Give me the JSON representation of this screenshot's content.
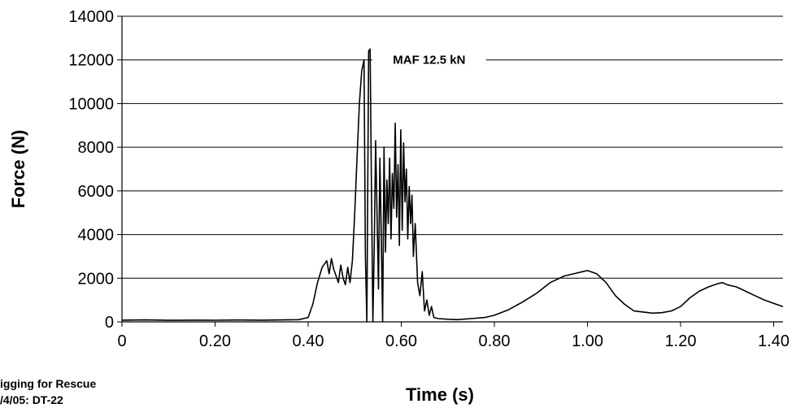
{
  "chart_data": {
    "type": "line",
    "xlabel": "Time (s)",
    "ylabel": "Force (N)",
    "xlim": [
      0,
      1.42
    ],
    "ylim": [
      0,
      14000
    ],
    "xticks": [
      0,
      0.2,
      0.4,
      0.6,
      0.8,
      1.0,
      1.2,
      1.4
    ],
    "xtick_labels": [
      "0",
      "0.20",
      "0.40",
      "0.60",
      "0.80",
      "1.00",
      "1.20",
      "1.40"
    ],
    "yticks": [
      0,
      2000,
      4000,
      6000,
      8000,
      10000,
      12000,
      14000
    ],
    "ytick_labels": [
      "0",
      "2000",
      "4000",
      "6000",
      "8000",
      "10000",
      "12000",
      "14000"
    ],
    "grid": "horizontal",
    "legend": "none",
    "line_color": "#000000",
    "annotation": {
      "text": "MAF 12.5 kN",
      "x": 0.66,
      "y": 12000
    },
    "series": [
      {
        "x": [
          0,
          0.05,
          0.1,
          0.15,
          0.2,
          0.25,
          0.3,
          0.35,
          0.38,
          0.4,
          0.41,
          0.42,
          0.43,
          0.44,
          0.445,
          0.45,
          0.455,
          0.46,
          0.465,
          0.47,
          0.475,
          0.48,
          0.485,
          0.49,
          0.495,
          0.5,
          0.505,
          0.51,
          0.515,
          0.52,
          0.523,
          0.526,
          0.53,
          0.533,
          0.536,
          0.539,
          0.542,
          0.545,
          0.548,
          0.551,
          0.554,
          0.557,
          0.56,
          0.563,
          0.566,
          0.569,
          0.572,
          0.575,
          0.578,
          0.581,
          0.584,
          0.587,
          0.59,
          0.593,
          0.596,
          0.599,
          0.602,
          0.605,
          0.608,
          0.611,
          0.614,
          0.617,
          0.62,
          0.623,
          0.626,
          0.63,
          0.635,
          0.64,
          0.645,
          0.65,
          0.655,
          0.66,
          0.665,
          0.67,
          0.68,
          0.7,
          0.72,
          0.75,
          0.78,
          0.8,
          0.83,
          0.86,
          0.89,
          0.92,
          0.95,
          0.97,
          0.99,
          1.0,
          1.02,
          1.04,
          1.06,
          1.08,
          1.1,
          1.12,
          1.14,
          1.16,
          1.18,
          1.2,
          1.22,
          1.24,
          1.26,
          1.28,
          1.29,
          1.3,
          1.32,
          1.34,
          1.36,
          1.38,
          1.4,
          1.42
        ],
        "y": [
          80,
          90,
          70,
          80,
          75,
          85,
          80,
          90,
          100,
          200,
          800,
          1800,
          2500,
          2800,
          2200,
          2900,
          2400,
          2100,
          1800,
          2600,
          2000,
          1700,
          2500,
          1800,
          2800,
          5000,
          7500,
          10000,
          11500,
          12000,
          3000,
          0,
          12400,
          12500,
          6000,
          0,
          3500,
          8300,
          5000,
          1500,
          7500,
          4000,
          0,
          8000,
          3200,
          6500,
          4500,
          7500,
          3800,
          6800,
          5200,
          9100,
          4800,
          7200,
          3500,
          8800,
          4200,
          8200,
          5500,
          7000,
          3800,
          6200,
          4500,
          5800,
          3000,
          4500,
          1800,
          1200,
          2300,
          500,
          1000,
          300,
          700,
          200,
          150,
          120,
          100,
          150,
          200,
          300,
          550,
          900,
          1300,
          1800,
          2100,
          2200,
          2300,
          2350,
          2200,
          1800,
          1200,
          800,
          500,
          450,
          400,
          420,
          500,
          700,
          1100,
          1400,
          1600,
          1750,
          1800,
          1700,
          1600,
          1400,
          1200,
          1000,
          850,
          700
        ]
      }
    ]
  },
  "footer": {
    "line1": "igging for Rescue",
    "line2": "/4/05: DT-22"
  }
}
